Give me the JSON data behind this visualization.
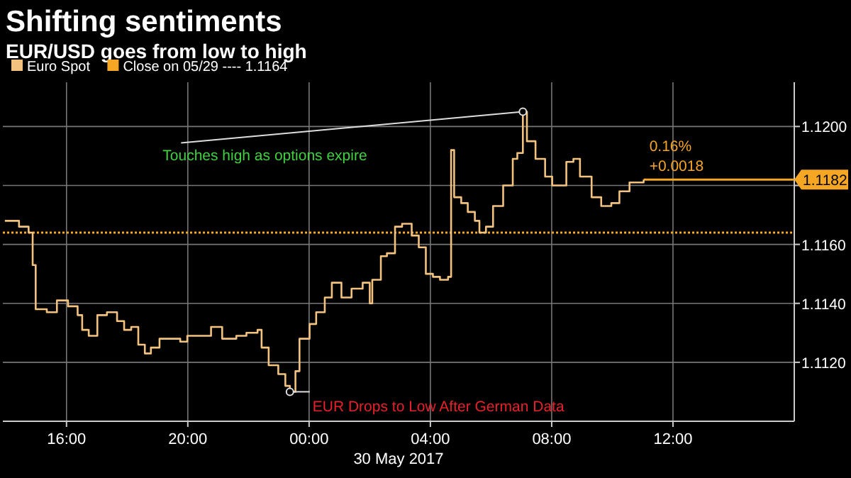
{
  "chart_data": {
    "type": "step",
    "title": "Shifting sentiments",
    "subtitle": "EUR/USD goes from low to high",
    "xlabel": "30 May 2017",
    "xlim": [
      "2017-05-29T13:54",
      "2017-05-30T16:00"
    ],
    "xticks": [
      {
        "value": "2017-05-29T16:00",
        "label": "16:00"
      },
      {
        "value": "2017-05-29T20:00",
        "label": "20:00"
      },
      {
        "value": "2017-05-30T00:00",
        "label": "00:00"
      },
      {
        "value": "2017-05-30T04:00",
        "label": "04:00"
      },
      {
        "value": "2017-05-30T08:00",
        "label": "08:00"
      },
      {
        "value": "2017-05-30T12:00",
        "label": "12:00"
      }
    ],
    "ylim": [
      1.11,
      1.1215
    ],
    "yticks": [
      {
        "value": 1.112,
        "label": "1.1120"
      },
      {
        "value": 1.114,
        "label": "1.1140"
      },
      {
        "value": 1.116,
        "label": "1.1160"
      },
      {
        "value": 1.118,
        "label": null
      },
      {
        "value": 1.12,
        "label": "1.1200"
      }
    ],
    "grid": true,
    "legend": "top left",
    "series": [
      {
        "name": "Euro Spot",
        "color": "#f2c27e",
        "x": [
          "2017-05-29T13:58",
          "2017-05-29T14:26",
          "2017-05-29T14:45",
          "2017-05-29T14:53",
          "2017-05-29T14:59",
          "2017-05-29T15:21",
          "2017-05-29T15:41",
          "2017-05-29T16:03",
          "2017-05-29T16:22",
          "2017-05-29T16:31",
          "2017-05-29T16:44",
          "2017-05-29T17:01",
          "2017-05-29T17:20",
          "2017-05-29T17:40",
          "2017-05-29T17:54",
          "2017-05-29T18:08",
          "2017-05-29T18:22",
          "2017-05-29T18:35",
          "2017-05-29T18:47",
          "2017-05-29T19:04",
          "2017-05-29T19:26",
          "2017-05-29T19:45",
          "2017-05-29T19:59",
          "2017-05-29T20:26",
          "2017-05-29T20:46",
          "2017-05-29T21:08",
          "2017-05-29T21:36",
          "2017-05-29T21:56",
          "2017-05-29T22:18",
          "2017-05-29T22:26",
          "2017-05-29T22:40",
          "2017-05-29T22:59",
          "2017-05-29T23:13",
          "2017-05-29T23:22",
          "2017-05-29T23:33",
          "2017-05-29T23:41",
          "2017-05-30T00:01",
          "2017-05-30T00:14",
          "2017-05-30T00:31",
          "2017-05-30T00:45",
          "2017-05-30T01:04",
          "2017-05-30T01:24",
          "2017-05-30T01:46",
          "2017-05-30T02:00",
          "2017-05-30T02:05",
          "2017-05-30T02:22",
          "2017-05-30T02:34",
          "2017-05-30T02:50",
          "2017-05-30T03:04",
          "2017-05-30T03:23",
          "2017-05-30T03:37",
          "2017-05-30T03:51",
          "2017-05-30T04:05",
          "2017-05-30T04:19",
          "2017-05-30T04:35",
          "2017-05-30T04:41",
          "2017-05-30T04:47",
          "2017-05-30T05:01",
          "2017-05-30T05:14",
          "2017-05-30T05:28",
          "2017-05-30T05:37",
          "2017-05-30T05:50",
          "2017-05-30T06:04",
          "2017-05-30T06:24",
          "2017-05-30T06:43",
          "2017-05-30T06:52",
          "2017-05-30T07:03",
          "2017-05-30T07:11",
          "2017-05-30T07:28",
          "2017-05-30T07:47",
          "2017-05-30T08:01",
          "2017-05-30T08:15",
          "2017-05-30T08:29",
          "2017-05-30T08:43",
          "2017-05-30T08:56",
          "2017-05-30T09:19",
          "2017-05-30T09:38",
          "2017-05-30T09:58",
          "2017-05-30T10:14",
          "2017-05-30T10:34",
          "2017-05-30T10:53",
          "2017-05-30T11:02"
        ],
        "values": [
          1.1168,
          1.1166,
          1.1164,
          1.1153,
          1.1138,
          1.1137,
          1.1141,
          1.1139,
          1.1136,
          1.1131,
          1.1129,
          1.1136,
          1.1137,
          1.1134,
          1.1131,
          1.1132,
          1.1126,
          1.1123,
          1.1125,
          1.1128,
          1.1128,
          1.1127,
          1.1129,
          1.1129,
          1.1132,
          1.1128,
          1.1129,
          1.113,
          1.1131,
          1.1125,
          1.1119,
          1.1116,
          1.1112,
          1.111,
          1.1117,
          1.1128,
          1.1133,
          1.1137,
          1.1142,
          1.1147,
          1.1142,
          1.1145,
          1.1147,
          1.114,
          1.1148,
          1.1156,
          1.1157,
          1.1166,
          1.1167,
          1.1163,
          1.1159,
          1.115,
          1.1149,
          1.1148,
          1.1149,
          1.1192,
          1.1176,
          1.1174,
          1.1171,
          1.1168,
          1.1164,
          1.1166,
          1.1173,
          1.118,
          1.1189,
          1.1191,
          1.1205,
          1.1195,
          1.1189,
          1.1183,
          1.118,
          1.118,
          1.1188,
          1.1189,
          1.1183,
          1.1176,
          1.1173,
          1.1174,
          1.1178,
          1.1181,
          1.1181,
          1.1182
        ]
      }
    ],
    "ref_lines": [
      {
        "axis": "y",
        "value": 1.1164,
        "label": "Close on 05/29 ---- 1.1164",
        "color": "#f5a623",
        "line_style": "dotted"
      },
      {
        "axis": "y",
        "value": 1.1182,
        "label": "1.1182",
        "color": "#f5a623",
        "line_style": "solid"
      }
    ],
    "annotations": [
      {
        "text": "Touches high as options expire",
        "x": "2017-05-30T07:03",
        "y": 1.1205
      },
      {
        "text": "EUR Drops to Low After German Data",
        "x": "2017-05-29T23:22",
        "y": 1.111
      },
      {
        "text": "0.16%",
        "x": "2017-05-30T11:02",
        "y": 1.1182
      },
      {
        "text": "+0.0018",
        "x": "2017-05-30T11:02",
        "y": 1.1182
      }
    ]
  }
}
